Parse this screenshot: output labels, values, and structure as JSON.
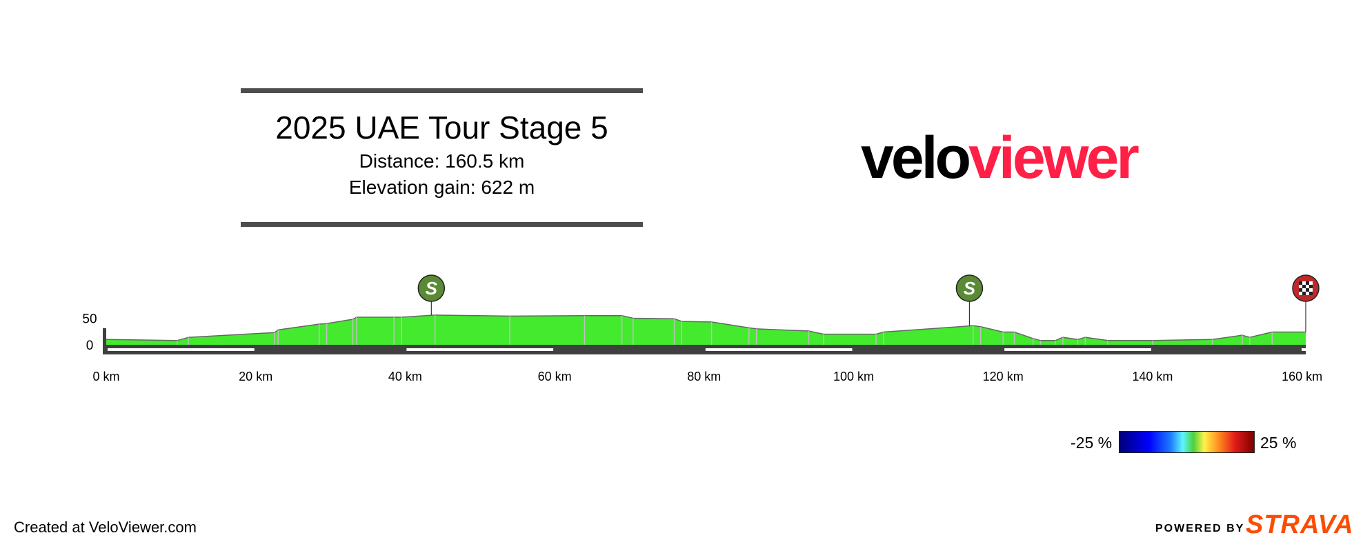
{
  "header": {
    "title": "2025 UAE Tour Stage 5",
    "distance": "Distance: 160.5 km",
    "elevation_gain": "Elevation gain: 622 m"
  },
  "logo": {
    "part1": "velo",
    "part2": "viewer"
  },
  "footer": {
    "credit": "Created at VeloViewer.com",
    "powered_by": "POWERED BY",
    "strava": "STRAVA"
  },
  "gradient_scale": {
    "min_label": "-25 %",
    "max_label": "25 %"
  },
  "colors": {
    "fill": "#44ea2e",
    "outline": "#666666",
    "axis": "#404040",
    "marker_sprint": "#5a8a35",
    "marker_finish": "#c0292b",
    "logo_accent": "#ff1f47",
    "strava": "#fc4c02"
  },
  "chart_data": {
    "type": "area",
    "title": "2025 UAE Tour Stage 5",
    "xlabel": "",
    "ylabel": "",
    "x_unit": "km",
    "y_unit": "m",
    "xlim": [
      0,
      160.5
    ],
    "ylim": [
      0,
      60
    ],
    "x_ticks": [
      0,
      20,
      40,
      60,
      80,
      100,
      120,
      140,
      160
    ],
    "x_tick_labels": [
      "0 km",
      "20 km",
      "40 km",
      "60 km",
      "80 km",
      "100 km",
      "120 km",
      "140 km",
      "160 km"
    ],
    "y_ticks": [
      0,
      50
    ],
    "y_tick_labels": [
      "0",
      "50"
    ],
    "x": [
      0,
      9.5,
      11,
      22.5,
      23,
      28.5,
      29.5,
      33,
      33.5,
      38.5,
      39.5,
      44,
      54,
      64,
      69,
      70.5,
      76,
      77,
      81,
      86,
      87,
      94,
      96,
      103,
      104,
      116,
      117,
      120,
      121.5,
      124,
      125,
      127,
      128,
      130,
      131,
      134,
      140,
      148,
      152,
      153,
      156,
      160.5
    ],
    "y": [
      10,
      8,
      14,
      23,
      28,
      39,
      40,
      48,
      52,
      52,
      52,
      56,
      54,
      55,
      55,
      50,
      49,
      44,
      43,
      32,
      30,
      26,
      20,
      20,
      24,
      36,
      34,
      24,
      24,
      12,
      8,
      8,
      14,
      10,
      14,
      8,
      8,
      10,
      18,
      14,
      24,
      24
    ],
    "markers": [
      {
        "type": "sprint",
        "label": "S",
        "km": 43.5
      },
      {
        "type": "sprint",
        "label": "S",
        "km": 115.5
      },
      {
        "type": "finish",
        "label": "",
        "km": 160.5
      }
    ]
  }
}
